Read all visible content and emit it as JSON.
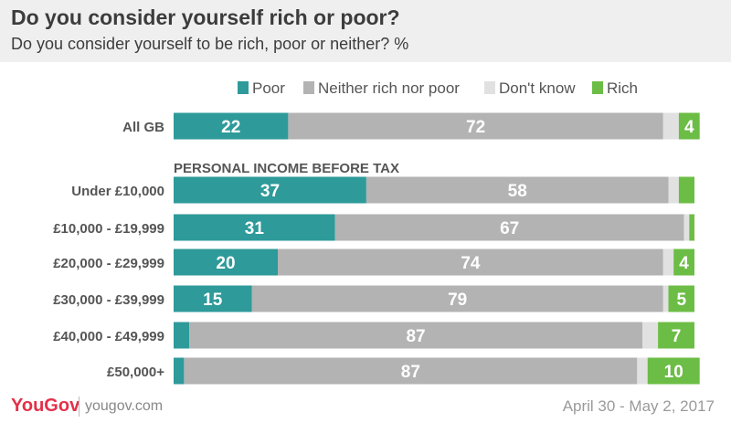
{
  "header": {
    "title": "Do you consider yourself rich or poor?",
    "subtitle": "Do you consider yourself to be rich, poor or neither? %"
  },
  "footer": {
    "logo": "YouGov",
    "site": "yougov.com",
    "date": "April 30 - May 2, 2017"
  },
  "colors": {
    "Poor": "#2e9a9a",
    "Neither rich nor poor": "#b3b3b3",
    "Don't know": "#e1e1e1",
    "Rich": "#6cbd45"
  },
  "chart_data": {
    "type": "bar",
    "orientation": "horizontal",
    "stacked": true,
    "legend": [
      "Poor",
      "Neither rich nor poor",
      "Don't know",
      "Rich"
    ],
    "legend_position": "top-right",
    "section_label": "PERSONAL INCOME BEFORE TAX",
    "categories": [
      "All GB",
      "Under £10,000",
      "£10,000 - £19,999",
      "£20,000 - £29,999",
      "£30,000 - £39,999",
      "£40,000 - £49,999",
      "£50,000+"
    ],
    "series": [
      {
        "name": "Poor",
        "values": [
          22,
          37,
          31,
          20,
          15,
          3,
          2
        ],
        "labels": [
          "22",
          "37",
          "31",
          "20",
          "15",
          "",
          ""
        ]
      },
      {
        "name": "Neither rich nor poor",
        "values": [
          72,
          58,
          67,
          74,
          79,
          87,
          87
        ],
        "labels": [
          "72",
          "58",
          "67",
          "74",
          "79",
          "87",
          "87"
        ]
      },
      {
        "name": "Don't know",
        "values": [
          3,
          2,
          1,
          2,
          1,
          3,
          2
        ],
        "labels": [
          "",
          "",
          "",
          "",
          "",
          "",
          ""
        ]
      },
      {
        "name": "Rich",
        "values": [
          4,
          3,
          1,
          4,
          5,
          7,
          10
        ],
        "labels": [
          "4",
          "",
          "",
          "4",
          "5",
          "7",
          "10"
        ]
      }
    ],
    "xlim": [
      0,
      100
    ]
  }
}
